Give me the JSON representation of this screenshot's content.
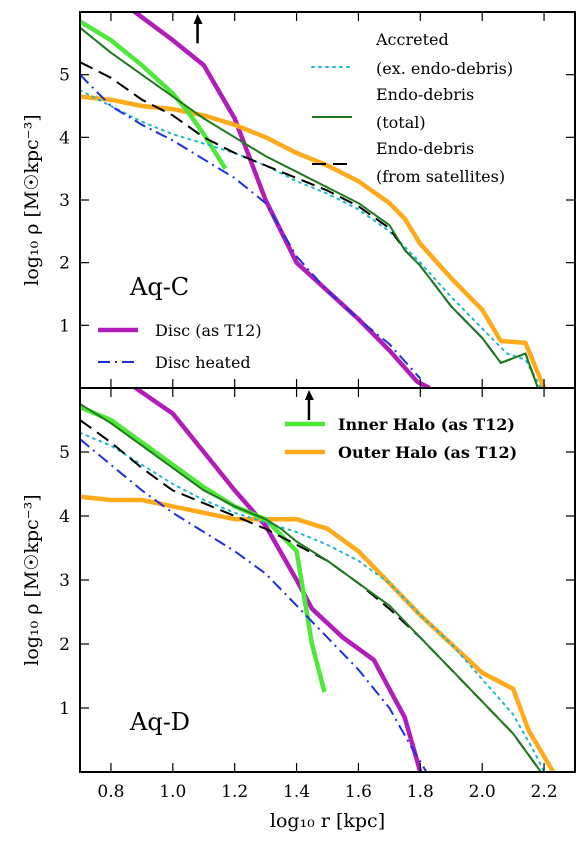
{
  "chart_data": [
    {
      "type": "line",
      "panel_label": "Aq-C",
      "ylabel": "log₁₀ ρ [M☉kpc⁻³]",
      "xlim": [
        0.7,
        2.3
      ],
      "ylim": [
        0,
        6
      ],
      "x_ticks": [],
      "y_ticks": [
        "1",
        "2",
        "3",
        "4",
        "5"
      ],
      "legend": [
        "Accreted",
        "(ex. endo-debris)",
        "Endo-debris",
        "(total)",
        "Endo-debris",
        "(from satellites)",
        "Disc (as T12)",
        "Disc heated"
      ],
      "arrow": {
        "x": 1.08,
        "from_y": 5.5,
        "to_y": 6.0
      },
      "series": [
        {
          "name": "Accreted (ex. endo-debris)",
          "color": "#22b8c9",
          "style": "dotted",
          "points": [
            [
              0.7,
              4.75
            ],
            [
              0.8,
              4.5
            ],
            [
              0.9,
              4.25
            ],
            [
              1.0,
              4.05
            ],
            [
              1.1,
              3.9
            ],
            [
              1.2,
              3.75
            ],
            [
              1.3,
              3.55
            ],
            [
              1.4,
              3.3
            ],
            [
              1.5,
              3.1
            ],
            [
              1.6,
              2.85
            ],
            [
              1.7,
              2.5
            ],
            [
              1.8,
              2.0
            ],
            [
              1.9,
              1.45
            ],
            [
              2.0,
              0.95
            ],
            [
              2.08,
              0.55
            ],
            [
              2.14,
              0.45
            ],
            [
              2.19,
              0.0
            ]
          ]
        },
        {
          "name": "Endo-debris (total)",
          "color": "#1e7a1e",
          "style": "solid",
          "points": [
            [
              0.7,
              5.75
            ],
            [
              0.8,
              5.35
            ],
            [
              0.9,
              5.0
            ],
            [
              1.0,
              4.65
            ],
            [
              1.1,
              4.3
            ],
            [
              1.2,
              4.0
            ],
            [
              1.3,
              3.7
            ],
            [
              1.4,
              3.45
            ],
            [
              1.5,
              3.2
            ],
            [
              1.6,
              2.95
            ],
            [
              1.7,
              2.6
            ],
            [
              1.75,
              2.2
            ],
            [
              1.8,
              1.95
            ],
            [
              1.9,
              1.3
            ],
            [
              2.0,
              0.8
            ],
            [
              2.06,
              0.4
            ],
            [
              2.14,
              0.55
            ],
            [
              2.18,
              0.0
            ]
          ]
        },
        {
          "name": "Endo-debris (from satellites)",
          "color": "#000000",
          "style": "dashed",
          "points": [
            [
              0.7,
              5.2
            ],
            [
              0.8,
              4.95
            ],
            [
              0.9,
              4.6
            ],
            [
              1.0,
              4.35
            ],
            [
              1.1,
              4.0
            ],
            [
              1.2,
              3.75
            ],
            [
              1.3,
              3.55
            ],
            [
              1.4,
              3.35
            ],
            [
              1.5,
              3.15
            ],
            [
              1.6,
              2.9
            ],
            [
              1.7,
              2.55
            ],
            [
              1.75,
              2.2
            ],
            [
              1.8,
              1.95
            ],
            [
              1.9,
              1.3
            ],
            [
              2.0,
              0.8
            ],
            [
              2.06,
              0.4
            ],
            [
              2.14,
              0.55
            ],
            [
              2.18,
              0.0
            ]
          ]
        },
        {
          "name": "Disc (as T12)",
          "color": "#b21cb8",
          "style": "solid",
          "points": [
            [
              0.7,
              6.4
            ],
            [
              0.85,
              6.1
            ],
            [
              1.0,
              5.55
            ],
            [
              1.1,
              5.15
            ],
            [
              1.2,
              4.3
            ],
            [
              1.3,
              3.0
            ],
            [
              1.4,
              2.0
            ],
            [
              1.5,
              1.55
            ],
            [
              1.6,
              1.1
            ],
            [
              1.7,
              0.6
            ],
            [
              1.79,
              0.1
            ],
            [
              1.83,
              0.0
            ]
          ]
        },
        {
          "name": "Disc heated",
          "color": "#1f2fe0",
          "style": "dashdot",
          "points": [
            [
              0.7,
              5.0
            ],
            [
              0.8,
              4.5
            ],
            [
              0.9,
              4.2
            ],
            [
              1.0,
              3.95
            ],
            [
              1.1,
              3.65
            ],
            [
              1.2,
              3.35
            ],
            [
              1.3,
              2.95
            ],
            [
              1.4,
              2.1
            ],
            [
              1.5,
              1.55
            ],
            [
              1.6,
              1.1
            ],
            [
              1.7,
              0.7
            ],
            [
              1.8,
              0.15
            ]
          ]
        },
        {
          "name": "Inner Halo (as T12)",
          "color": "#4ee83a",
          "style": "solid",
          "points": [
            [
              0.7,
              5.85
            ],
            [
              0.8,
              5.55
            ],
            [
              0.9,
              5.15
            ],
            [
              1.0,
              4.7
            ],
            [
              1.05,
              4.4
            ],
            [
              1.1,
              4.05
            ],
            [
              1.17,
              3.5
            ]
          ]
        },
        {
          "name": "Outer Halo (as T12)",
          "color": "#ffaa1a",
          "style": "solid",
          "points": [
            [
              0.7,
              4.65
            ],
            [
              0.8,
              4.6
            ],
            [
              0.9,
              4.5
            ],
            [
              1.0,
              4.45
            ],
            [
              1.1,
              4.35
            ],
            [
              1.2,
              4.2
            ],
            [
              1.3,
              4.0
            ],
            [
              1.4,
              3.75
            ],
            [
              1.5,
              3.55
            ],
            [
              1.6,
              3.3
            ],
            [
              1.7,
              2.95
            ],
            [
              1.75,
              2.7
            ],
            [
              1.8,
              2.3
            ],
            [
              1.9,
              1.75
            ],
            [
              2.0,
              1.25
            ],
            [
              2.06,
              0.75
            ],
            [
              2.14,
              0.72
            ],
            [
              2.2,
              0.0
            ]
          ]
        }
      ]
    },
    {
      "type": "line",
      "panel_label": "Aq-D",
      "xlabel": "log₁₀ r [kpc]",
      "ylabel": "log₁₀ ρ [M☉kpc⁻³]",
      "xlim": [
        0.7,
        2.3
      ],
      "ylim": [
        0,
        6
      ],
      "x_ticks": [
        "0.8",
        "1.0",
        "1.2",
        "1.4",
        "1.6",
        "1.8",
        "2.0",
        "2.2"
      ],
      "y_ticks": [
        "1",
        "2",
        "3",
        "4",
        "5"
      ],
      "legend": [
        "Inner Halo (as T12)",
        "Outer Halo (as T12)"
      ],
      "arrow": {
        "x": 1.44,
        "from_y": 5.5,
        "to_y": 6.0
      },
      "series": [
        {
          "name": "Accreted (ex. endo-debris)",
          "color": "#22b8c9",
          "style": "dotted",
          "points": [
            [
              0.7,
              5.3
            ],
            [
              0.8,
              5.1
            ],
            [
              0.9,
              4.8
            ],
            [
              1.0,
              4.5
            ],
            [
              1.1,
              4.25
            ],
            [
              1.2,
              4.05
            ],
            [
              1.3,
              3.9
            ],
            [
              1.4,
              3.75
            ],
            [
              1.5,
              3.55
            ],
            [
              1.6,
              3.3
            ],
            [
              1.7,
              2.95
            ],
            [
              1.8,
              2.45
            ],
            [
              1.9,
              2.0
            ],
            [
              2.0,
              1.45
            ],
            [
              2.1,
              0.9
            ],
            [
              2.17,
              0.3
            ],
            [
              2.2,
              0.0
            ]
          ]
        },
        {
          "name": "Endo-debris (total)",
          "color": "#1e7a1e",
          "style": "solid",
          "points": [
            [
              0.7,
              5.75
            ],
            [
              0.8,
              5.45
            ],
            [
              0.9,
              5.1
            ],
            [
              1.0,
              4.75
            ],
            [
              1.1,
              4.4
            ],
            [
              1.2,
              4.15
            ],
            [
              1.3,
              3.95
            ],
            [
              1.35,
              3.8
            ],
            [
              1.4,
              3.6
            ],
            [
              1.5,
              3.3
            ],
            [
              1.6,
              2.95
            ],
            [
              1.7,
              2.6
            ],
            [
              1.8,
              2.1
            ],
            [
              1.9,
              1.6
            ],
            [
              2.0,
              1.1
            ],
            [
              2.1,
              0.6
            ],
            [
              2.19,
              0.0
            ]
          ]
        },
        {
          "name": "Endo-debris (from satellites)",
          "color": "#000000",
          "style": "dashed",
          "points": [
            [
              0.7,
              5.5
            ],
            [
              0.8,
              5.15
            ],
            [
              0.9,
              4.75
            ],
            [
              1.0,
              4.4
            ],
            [
              1.1,
              4.2
            ],
            [
              1.2,
              4.0
            ],
            [
              1.3,
              3.8
            ],
            [
              1.4,
              3.55
            ],
            [
              1.5,
              3.3
            ],
            [
              1.6,
              2.95
            ],
            [
              1.7,
              2.55
            ],
            [
              1.8,
              2.1
            ],
            [
              1.9,
              1.6
            ],
            [
              2.0,
              1.1
            ],
            [
              2.1,
              0.6
            ],
            [
              2.19,
              0.0
            ]
          ]
        },
        {
          "name": "Disc (as T12)",
          "color": "#b21cb8",
          "style": "solid",
          "points": [
            [
              0.7,
              6.4
            ],
            [
              0.85,
              6.1
            ],
            [
              1.0,
              5.6
            ],
            [
              1.1,
              5.0
            ],
            [
              1.2,
              4.4
            ],
            [
              1.3,
              3.85
            ],
            [
              1.4,
              3.0
            ],
            [
              1.45,
              2.55
            ],
            [
              1.55,
              2.1
            ],
            [
              1.65,
              1.75
            ],
            [
              1.75,
              0.85
            ],
            [
              1.8,
              0.0
            ]
          ]
        },
        {
          "name": "Disc heated",
          "color": "#1f2fe0",
          "style": "dashdot",
          "points": [
            [
              0.7,
              5.2
            ],
            [
              0.8,
              4.8
            ],
            [
              0.9,
              4.4
            ],
            [
              1.0,
              4.05
            ],
            [
              1.1,
              3.75
            ],
            [
              1.2,
              3.45
            ],
            [
              1.3,
              3.1
            ],
            [
              1.4,
              2.6
            ],
            [
              1.5,
              2.1
            ],
            [
              1.6,
              1.6
            ],
            [
              1.7,
              1.0
            ],
            [
              1.77,
              0.4
            ],
            [
              1.82,
              0.0
            ]
          ]
        },
        {
          "name": "Inner Halo (as T12)",
          "color": "#4ee83a",
          "style": "solid",
          "points": [
            [
              0.7,
              5.7
            ],
            [
              0.8,
              5.5
            ],
            [
              0.9,
              5.15
            ],
            [
              1.0,
              4.8
            ],
            [
              1.1,
              4.45
            ],
            [
              1.2,
              4.15
            ],
            [
              1.3,
              3.95
            ],
            [
              1.4,
              3.45
            ],
            [
              1.45,
              2.0
            ],
            [
              1.49,
              1.25
            ]
          ]
        },
        {
          "name": "Outer Halo (as T12)",
          "color": "#ffaa1a",
          "style": "solid",
          "points": [
            [
              0.7,
              4.3
            ],
            [
              0.8,
              4.25
            ],
            [
              0.9,
              4.25
            ],
            [
              1.0,
              4.15
            ],
            [
              1.1,
              4.05
            ],
            [
              1.2,
              3.95
            ],
            [
              1.3,
              3.95
            ],
            [
              1.4,
              3.95
            ],
            [
              1.5,
              3.8
            ],
            [
              1.6,
              3.45
            ],
            [
              1.7,
              2.95
            ],
            [
              1.8,
              2.45
            ],
            [
              1.9,
              2.0
            ],
            [
              2.0,
              1.55
            ],
            [
              2.1,
              1.3
            ],
            [
              2.15,
              0.65
            ],
            [
              2.23,
              0.0
            ]
          ]
        }
      ]
    }
  ]
}
